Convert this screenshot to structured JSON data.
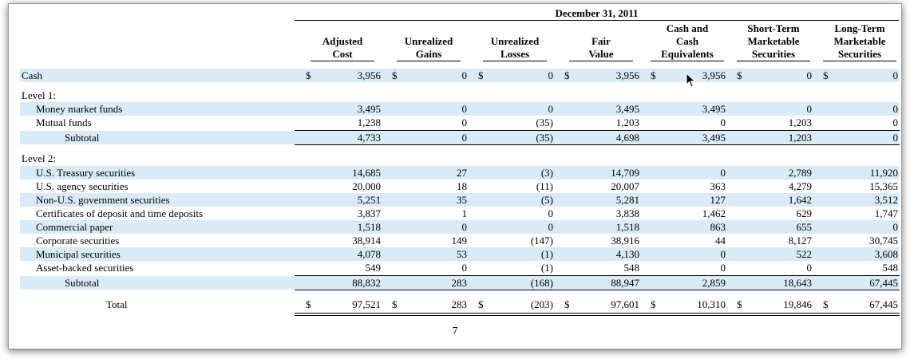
{
  "header": {
    "date": "December 31, 2011",
    "columns": [
      [
        "Adjusted",
        "Cost"
      ],
      [
        "Unrealized",
        "Gains"
      ],
      [
        "Unrealized",
        "Losses"
      ],
      [
        "Fair",
        "Value"
      ],
      [
        "Cash and",
        "Cash",
        "Equivalents"
      ],
      [
        "Short-Term",
        "Marketable",
        "Securities"
      ],
      [
        "Long-Term",
        "Marketable",
        "Securities"
      ]
    ]
  },
  "rows": {
    "cash": {
      "label": "Cash",
      "values": [
        "3,956",
        "0",
        "0",
        "3,956",
        "3,956",
        "0",
        "0"
      ],
      "dollar": "$"
    },
    "level1_label": "Level 1:",
    "mmf": {
      "label": "Money market funds",
      "values": [
        "3,495",
        "0",
        "0",
        "3,495",
        "3,495",
        "0",
        "0"
      ]
    },
    "mutual": {
      "label": "Mutual funds",
      "values": [
        "1,238",
        "0",
        "(35)",
        "1,203",
        "0",
        "1,203",
        "0"
      ]
    },
    "subtotal1": {
      "label": "Subtotal",
      "values": [
        "4,733",
        "0",
        "(35)",
        "4,698",
        "3,495",
        "1,203",
        "0"
      ]
    },
    "level2_label": "Level 2:",
    "treasury": {
      "label": "U.S. Treasury securities",
      "values": [
        "14,685",
        "27",
        "(3)",
        "14,709",
        "0",
        "2,789",
        "11,920"
      ]
    },
    "agency": {
      "label": "U.S. agency securities",
      "values": [
        "20,000",
        "18",
        "(11)",
        "20,007",
        "363",
        "4,279",
        "15,365"
      ]
    },
    "nonus": {
      "label": "Non-U.S. government securities",
      "values": [
        "5,251",
        "35",
        "(5)",
        "5,281",
        "127",
        "1,642",
        "3,512"
      ]
    },
    "cds": {
      "label": "Certificates of deposit and time deposits",
      "values": [
        "3,837",
        "1",
        "0",
        "3,838",
        "1,462",
        "629",
        "1,747"
      ]
    },
    "cp": {
      "label": "Commercial paper",
      "values": [
        "1,518",
        "0",
        "0",
        "1,518",
        "863",
        "655",
        "0"
      ]
    },
    "corp": {
      "label": "Corporate securities",
      "values": [
        "38,914",
        "149",
        "(147)",
        "38,916",
        "44",
        "8,127",
        "30,745"
      ]
    },
    "muni": {
      "label": "Municipal securities",
      "values": [
        "4,078",
        "53",
        "(1)",
        "4,130",
        "0",
        "522",
        "3,608"
      ]
    },
    "abs": {
      "label": "Asset-backed securities",
      "values": [
        "549",
        "0",
        "(1)",
        "548",
        "0",
        "0",
        "548"
      ]
    },
    "subtotal2": {
      "label": "Subtotal",
      "values": [
        "88,832",
        "283",
        "(168)",
        "88,947",
        "2,859",
        "18,643",
        "67,445"
      ]
    },
    "total": {
      "label": "Total",
      "values": [
        "97,521",
        "283",
        "(203)",
        "97,601",
        "10,310",
        "19,846",
        "67,445"
      ],
      "dollar": "$"
    }
  },
  "page_number": "7"
}
